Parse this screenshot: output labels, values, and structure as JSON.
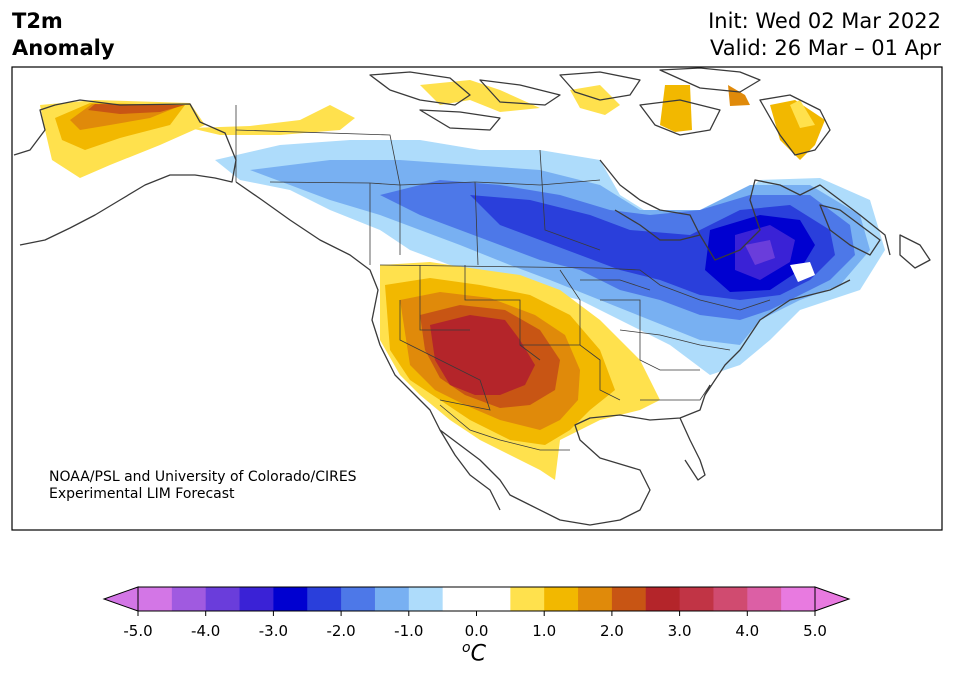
{
  "header": {
    "title_line1": "T2m",
    "title_line2": "Anomaly",
    "init_text": "Init: Wed 02 Mar 2022",
    "valid_text": "Valid: 26 Mar – 01 Apr"
  },
  "credit": {
    "line1": "NOAA/PSL and University of Colorado/CIRES",
    "line2": "Experimental LIM Forecast"
  },
  "colorbar": {
    "unit_base": "C",
    "unit_sup": "o",
    "tick_labels": [
      "-5.0",
      "-4.0",
      "-3.0",
      "-2.0",
      "-1.0",
      "0.0",
      "1.0",
      "2.0",
      "3.0",
      "4.0",
      "5.0"
    ],
    "under_color": "#d376e6",
    "over_color": "#e87ae0",
    "colors": [
      "#d376e6",
      "#a05ae0",
      "#6a3ddb",
      "#3a22d6",
      "#0000d0",
      "#2a3fdb",
      "#4d78e8",
      "#78b0f2",
      "#aedcfb",
      "#ffffff",
      "#ffffff",
      "#ffe14d",
      "#f2b800",
      "#e08a0a",
      "#c85514",
      "#b4252a",
      "#c13445",
      "#d04b70",
      "#dc5fa5",
      "#e87ae0"
    ]
  },
  "legend_colors": {
    "warm_light": "#ffe14d",
    "warm_mid": "#f2b800",
    "warm_orange": "#e08a0a",
    "warm_dark": "#c85514",
    "warm_red": "#b4252a",
    "cool_light": "#aedcfb",
    "cool_mid": "#78b0f2",
    "cool_blue": "#4d78e8",
    "cool_strong": "#2a3fdb",
    "cool_deep": "#0000d0",
    "cool_purple": "#6a3ddb"
  }
}
